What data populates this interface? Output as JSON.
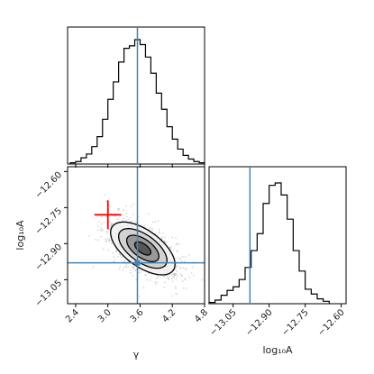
{
  "chart_data": {
    "type": "corner",
    "parameters": [
      {
        "key": "gamma",
        "label": "γ"
      },
      {
        "key": "log10A",
        "label": "log₁₀A"
      }
    ],
    "truths": {
      "gamma": 3.55,
      "log10A": -12.98
    },
    "reference_point": {
      "gamma": 3.0,
      "log10A": -12.78,
      "gamma_err": 0.25,
      "log10A_err": 0.06,
      "color": "#ff0000"
    },
    "gamma_ticks": [
      "2.4",
      "3.0",
      "3.6",
      "4.2",
      "4.8"
    ],
    "log10A_ticks_y": [
      "−12.60",
      "−12.75",
      "−12.90",
      "−13.05"
    ],
    "log10A_ticks_x": [
      "−13.05",
      "−12.90",
      "−12.75",
      "−12.60"
    ],
    "gamma_range": [
      2.25,
      4.8
    ],
    "log10A_range": [
      -13.15,
      -12.58
    ],
    "hist_gamma": {
      "bin_edges": [
        2.3,
        2.4,
        2.5,
        2.6,
        2.7,
        2.8,
        2.9,
        3.0,
        3.1,
        3.2,
        3.3,
        3.4,
        3.5,
        3.6,
        3.7,
        3.8,
        3.9,
        4.0,
        4.1,
        4.2,
        4.3,
        4.4,
        4.5,
        4.6,
        4.7,
        4.8
      ],
      "counts": [
        0.01,
        0.02,
        0.05,
        0.08,
        0.14,
        0.22,
        0.36,
        0.52,
        0.66,
        0.82,
        0.93,
        0.95,
        1.0,
        0.96,
        0.86,
        0.73,
        0.57,
        0.44,
        0.3,
        0.2,
        0.12,
        0.07,
        0.04,
        0.02,
        0.01
      ]
    },
    "hist_log10A": {
      "bin_edges": [
        -13.15,
        -13.125,
        -13.1,
        -13.075,
        -13.05,
        -13.025,
        -13.0,
        -12.975,
        -12.95,
        -12.925,
        -12.9,
        -12.875,
        -12.85,
        -12.825,
        -12.8,
        -12.775,
        -12.75,
        -12.725,
        -12.7,
        -12.675,
        -12.65
      ],
      "counts": [
        0.01,
        0.03,
        0.07,
        0.11,
        0.14,
        0.2,
        0.3,
        0.44,
        0.58,
        0.83,
        0.98,
        1.0,
        0.9,
        0.7,
        0.44,
        0.27,
        0.12,
        0.08,
        0.04,
        0.02
      ]
    },
    "joint": {
      "mean": {
        "gamma": 3.65,
        "log10A": -12.92
      },
      "std": {
        "gamma": 0.3,
        "log10A": 0.055
      },
      "correlation": -0.6,
      "contour_levels_sigma": [
        0.5,
        1.0,
        1.5,
        2.0
      ]
    },
    "colors": {
      "truth": "#4682b4",
      "hist": "#000000",
      "contour_fill": "#555555"
    },
    "grid": false
  }
}
